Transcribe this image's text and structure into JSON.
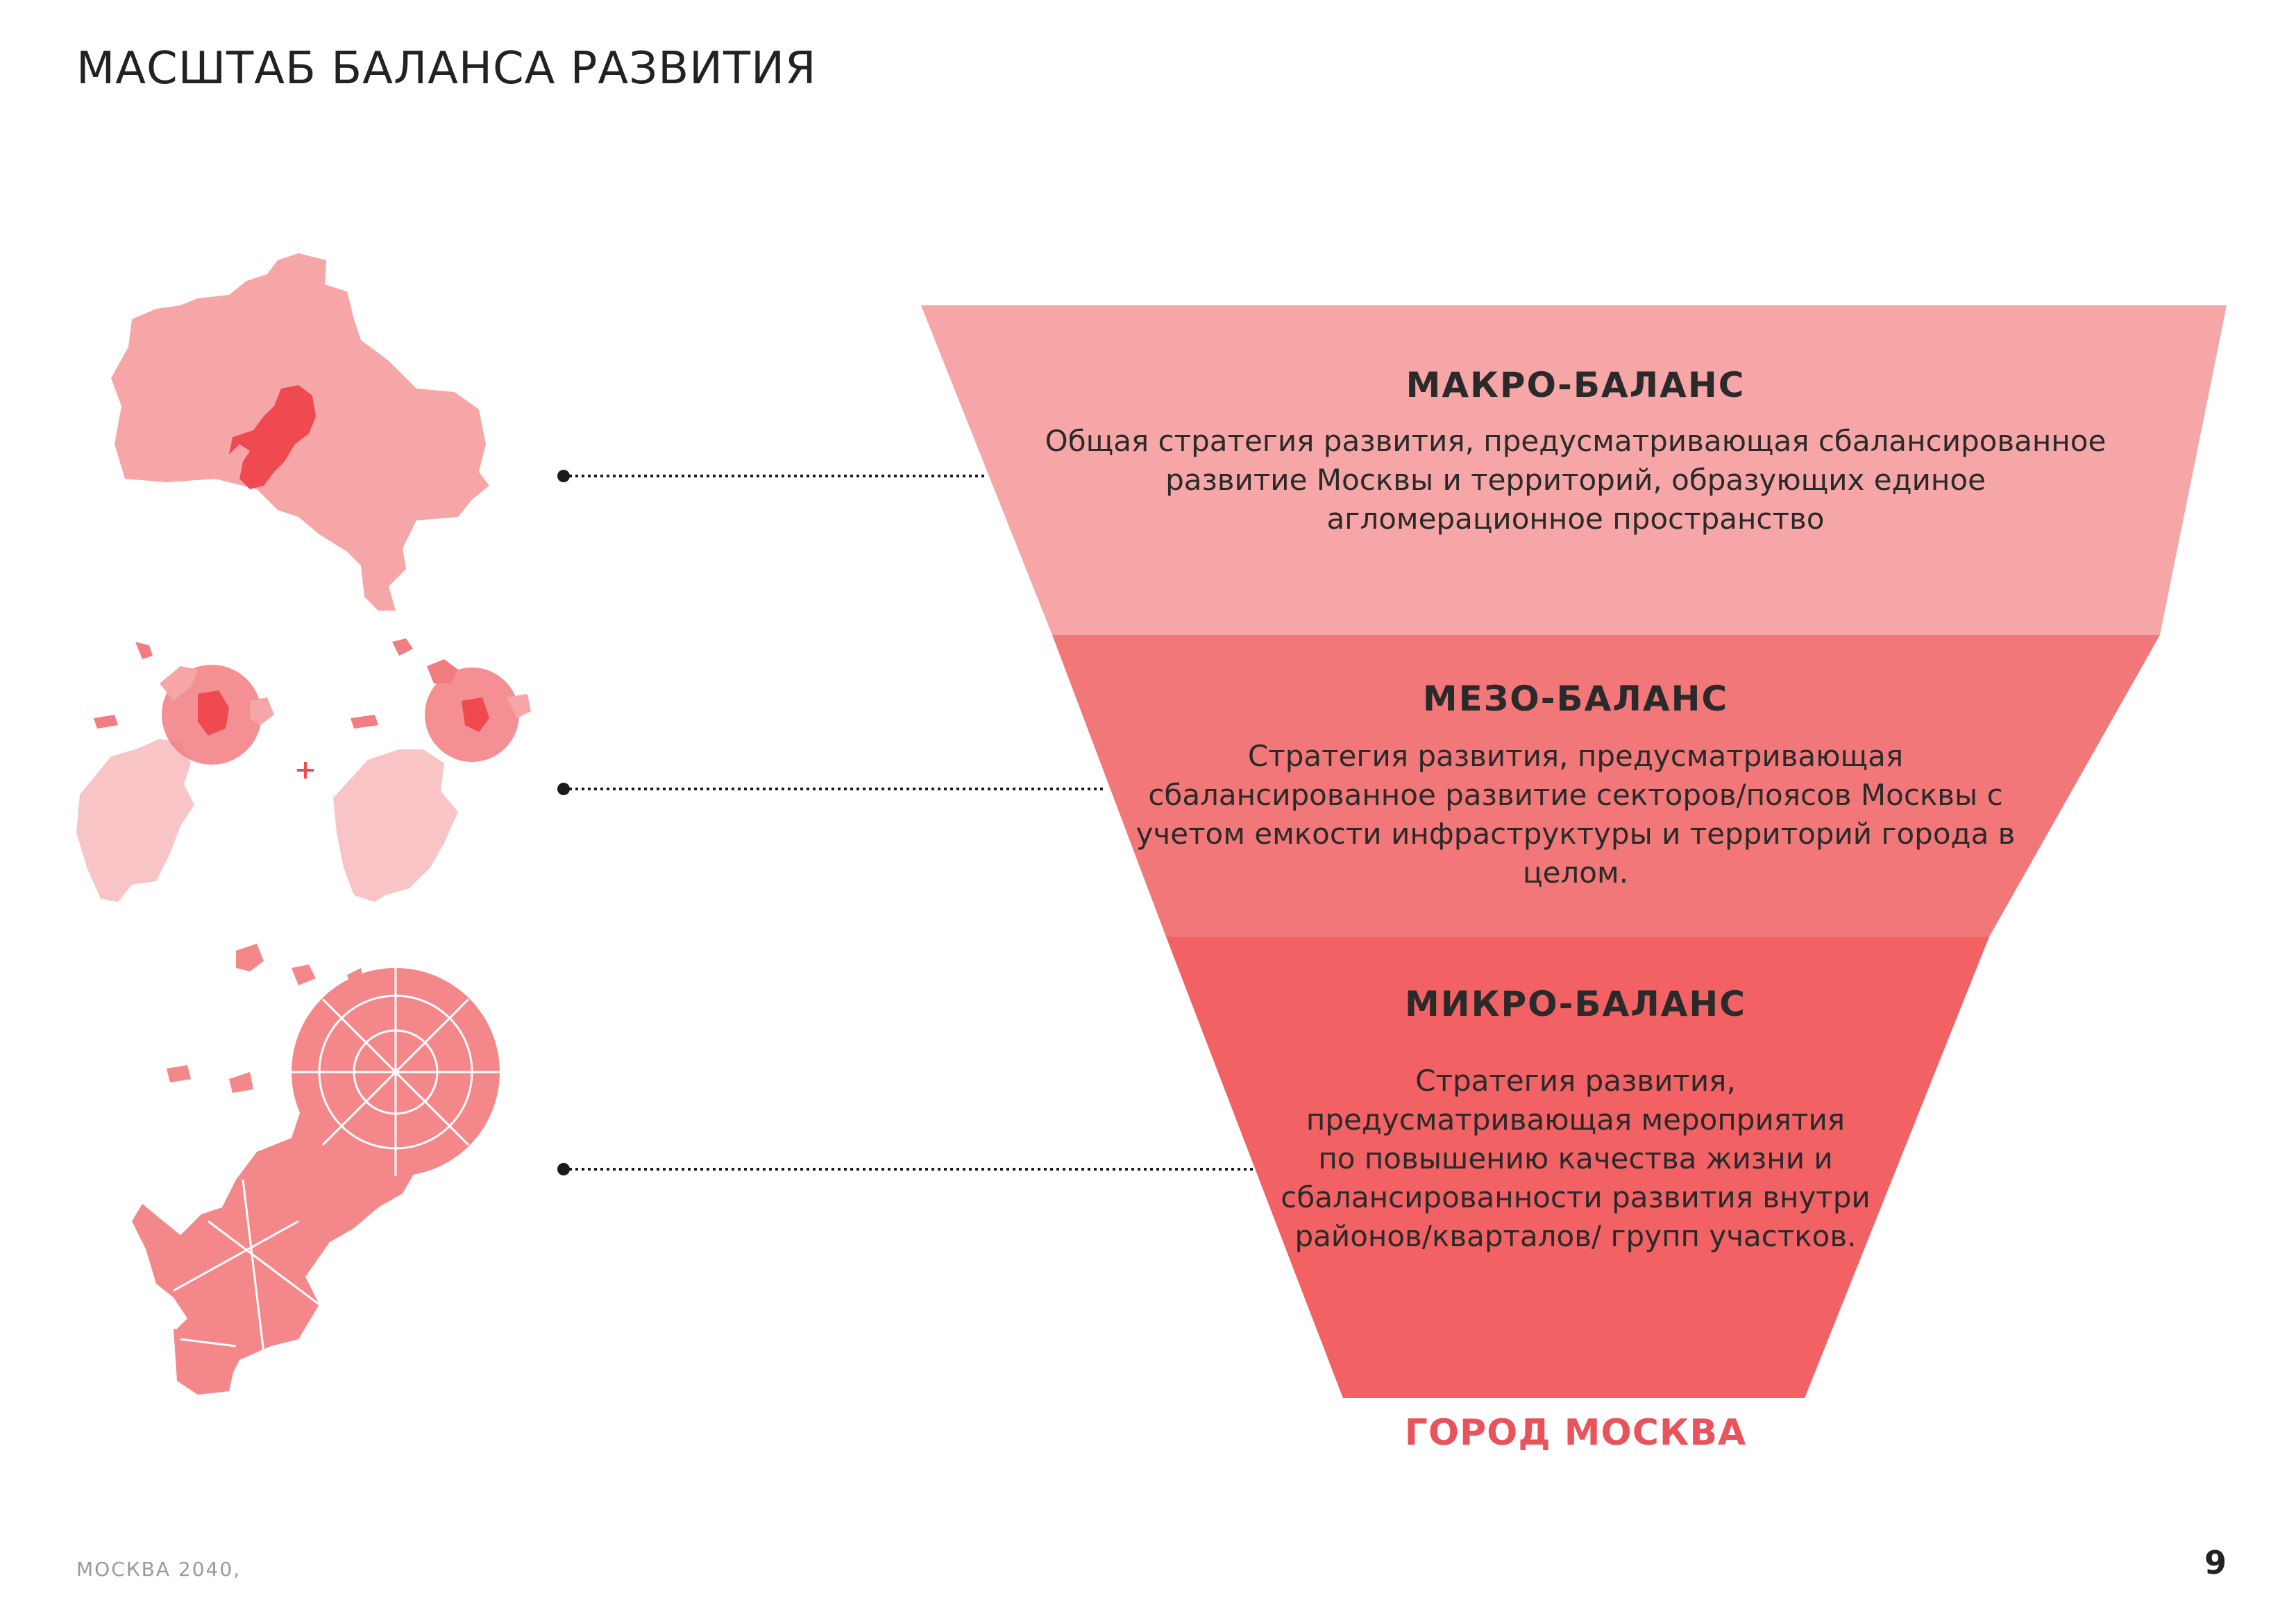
{
  "page": {
    "title": "МАСШТАБ БАЛАНСА РАЗВИТИЯ",
    "footer": "МОСКВА 2040,",
    "page_number": "9"
  },
  "levels": [
    {
      "heading": "МАКРО-БАЛАНС",
      "lines": [
        "Общая стратегия развития, предусматривающая сбалансированное",
        "развитие Москвы и  территорий, образующих единое",
        "агломерационное пространство"
      ],
      "color": "#f6a6a6"
    },
    {
      "heading": "МЕЗО-БАЛАНС",
      "lines": [
        "Стратегия развития, предусматривающая",
        "сбалансированное развитие секторов/поясов Москвы с",
        "учетом емкости инфраструктуры и территорий города в",
        "целом."
      ],
      "color": "#f27778"
    },
    {
      "heading": "МИКРО-БАЛАНС",
      "lines": [
        "Стратегия развития,",
        "предусматривающая мероприятия",
        "по повышению качества жизни и",
        "сбалансированности развития внутри",
        "районов/кварталов/ групп участков."
      ],
      "color": "#f26163"
    }
  ],
  "bottom_label": "ГОРОД МОСКВА",
  "colors": {
    "accent": "#e9535b",
    "map_light": "#f6a6a6",
    "map_mid": "#f27d80",
    "map_dark": "#ee4a4f",
    "map_pale": "#f9c4c6"
  }
}
